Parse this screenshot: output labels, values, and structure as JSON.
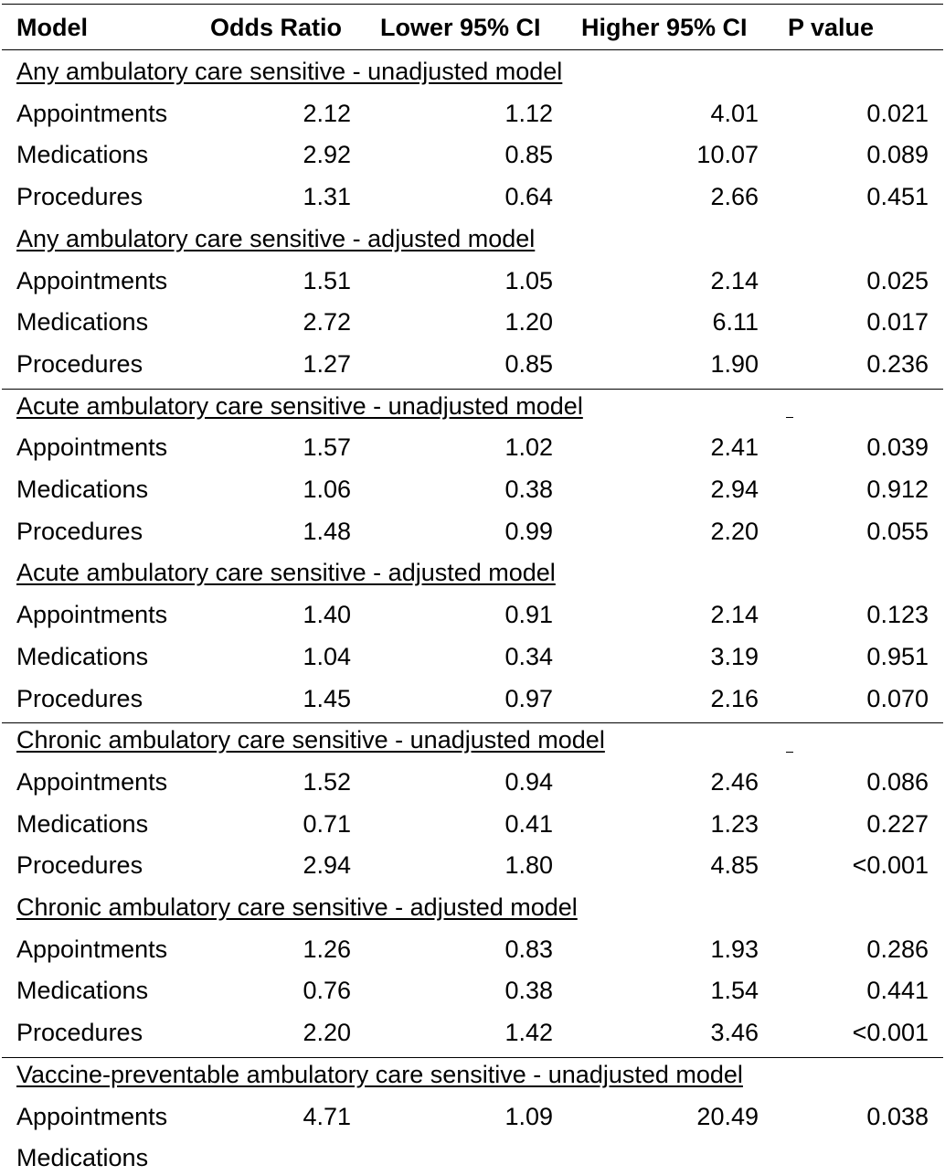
{
  "table": {
    "headers": {
      "model": "Model",
      "odds_ratio": "Odds Ratio",
      "lower_ci": "Lower 95% CI",
      "higher_ci": "Higher 95% CI",
      "p_value": "P value"
    },
    "sections": [
      {
        "title": "Any ambulatory care sensitive - unadjusted model",
        "rows": [
          {
            "label": "Appointments",
            "or": "2.12",
            "lo": "1.12",
            "hi": "4.01",
            "p": "0.021"
          },
          {
            "label": "Medications",
            "or": "2.92",
            "lo": "0.85",
            "hi": "10.07",
            "p": "0.089"
          },
          {
            "label": "Procedures",
            "or": "1.31",
            "lo": "0.64",
            "hi": "2.66",
            "p": "0.451"
          }
        ]
      },
      {
        "title": "Any ambulatory care sensitive - adjusted model",
        "rows": [
          {
            "label": "Appointments",
            "or": "1.51",
            "lo": "1.05",
            "hi": "2.14",
            "p": "0.025"
          },
          {
            "label": "Medications",
            "or": "2.72",
            "lo": "1.20",
            "hi": "6.11",
            "p": "0.017"
          },
          {
            "label": "Procedures",
            "or": "1.27",
            "lo": "0.85",
            "hi": "1.90",
            "p": "0.236"
          }
        ]
      },
      {
        "title": "Acute ambulatory care sensitive - unadjusted model",
        "rows": [
          {
            "label": "Appointments",
            "or": "1.57",
            "lo": "1.02",
            "hi": "2.41",
            "p": "0.039"
          },
          {
            "label": "Medications",
            "or": "1.06",
            "lo": "0.38",
            "hi": "2.94",
            "p": "0.912"
          },
          {
            "label": "Procedures",
            "or": "1.48",
            "lo": "0.99",
            "hi": "2.20",
            "p": "0.055"
          }
        ]
      },
      {
        "title": "Acute ambulatory care sensitive - adjusted model",
        "rows": [
          {
            "label": "Appointments",
            "or": "1.40",
            "lo": "0.91",
            "hi": "2.14",
            "p": "0.123"
          },
          {
            "label": "Medications",
            "or": "1.04",
            "lo": "0.34",
            "hi": "3.19",
            "p": "0.951"
          },
          {
            "label": "Procedures",
            "or": "1.45",
            "lo": "0.97",
            "hi": "2.16",
            "p": "0.070"
          }
        ]
      },
      {
        "title": "Chronic ambulatory care sensitive - unadjusted model",
        "rows": [
          {
            "label": "Appointments",
            "or": "1.52",
            "lo": "0.94",
            "hi": "2.46",
            "p": "0.086"
          },
          {
            "label": "Medications",
            "or": "0.71",
            "lo": "0.41",
            "hi": "1.23",
            "p": "0.227"
          },
          {
            "label": "Procedures",
            "or": "2.94",
            "lo": "1.80",
            "hi": "4.85",
            "p": "<0.001"
          }
        ]
      },
      {
        "title": "Chronic ambulatory care sensitive - adjusted model",
        "rows": [
          {
            "label": "Appointments",
            "or": "1.26",
            "lo": "0.83",
            "hi": "1.93",
            "p": "0.286"
          },
          {
            "label": "Medications",
            "or": "0.76",
            "lo": "0.38",
            "hi": "1.54",
            "p": "0.441"
          },
          {
            "label": "Procedures",
            "or": "2.20",
            "lo": "1.42",
            "hi": "3.46",
            "p": "<0.001"
          }
        ]
      },
      {
        "title": "Vaccine-preventable ambulatory care sensitive - unadjusted model",
        "rows": [
          {
            "label": "Appointments",
            "or": "4.71",
            "lo": "1.09",
            "hi": "20.49",
            "p": "0.038"
          },
          {
            "label": "Medications",
            "or": "",
            "lo": "",
            "hi": "",
            "p": ""
          }
        ]
      }
    ]
  }
}
